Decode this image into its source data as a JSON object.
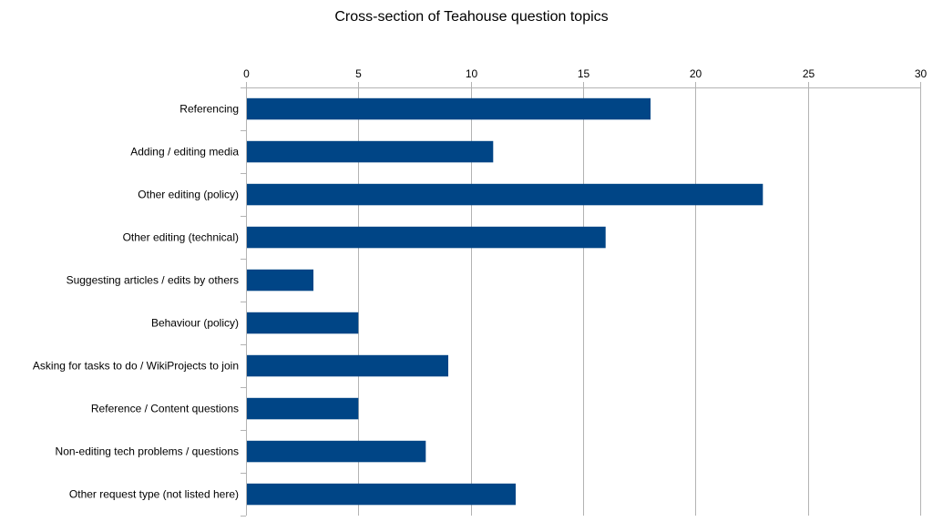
{
  "chart_data": {
    "type": "bar",
    "orientation": "horizontal",
    "title": "Cross-section of Teahouse question topics",
    "xlabel": "",
    "ylabel": "",
    "categories": [
      "Referencing",
      "Adding / editing media",
      "Other editing (policy)",
      "Other editing (technical)",
      "Suggesting articles / edits by others",
      "Behaviour (policy)",
      "Asking for tasks to do / WikiProjects to join",
      "Reference / Content questions",
      "Non-editing tech problems / questions",
      "Other request type (not listed here)"
    ],
    "values": [
      18,
      11,
      23,
      16,
      3,
      5,
      9,
      5,
      8,
      12
    ],
    "xlim": [
      0,
      30
    ],
    "xticks": [
      0,
      5,
      10,
      15,
      20,
      25,
      30
    ],
    "x_axis_position": "top",
    "grid": true,
    "legend": "none",
    "bar_color": "#004586",
    "grid_color": "#b3b3b3"
  }
}
